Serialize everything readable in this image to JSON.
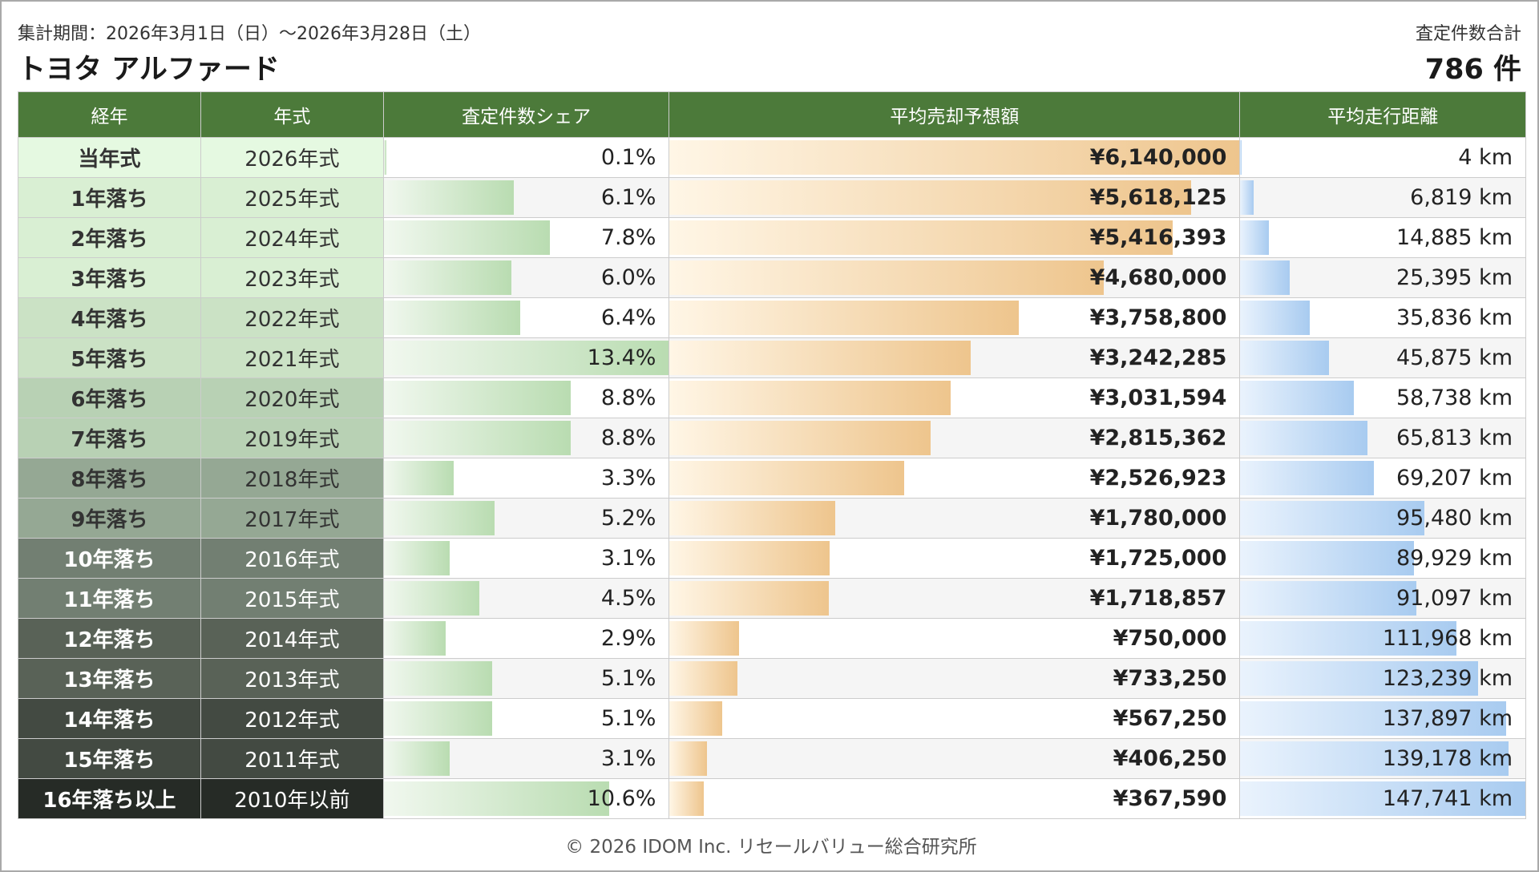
{
  "header": {
    "period": "集計期間：2026年3月1日（日）〜2026年3月28日（土）",
    "title": "トヨタ アルファード",
    "total_label": "査定件数合計",
    "total_value": "786 件"
  },
  "columns": {
    "age": "経年",
    "year": "年式",
    "share": "査定件数シェア",
    "price": "平均売却予想額",
    "mileage": "平均走行距離"
  },
  "rows": [
    {
      "age": "当年式",
      "year": "2026年式",
      "share": "0.1%",
      "share_pct": 0.1,
      "price": "¥6,140,000",
      "price_value": 6140000,
      "mileage": "4 km",
      "mileage_value": 4,
      "age_bg": "#e5f9e1",
      "age_fg": "#333333"
    },
    {
      "age": "1年落ち",
      "year": "2025年式",
      "share": "6.1%",
      "share_pct": 6.1,
      "price": "¥5,618,125",
      "price_value": 5618125,
      "mileage": "6,819 km",
      "mileage_value": 6819,
      "age_bg": "#d9efd3",
      "age_fg": "#333333"
    },
    {
      "age": "2年落ち",
      "year": "2024年式",
      "share": "7.8%",
      "share_pct": 7.8,
      "price": "¥5,416,393",
      "price_value": 5416393,
      "mileage": "14,885 km",
      "mileage_value": 14885,
      "age_bg": "#d9efd3",
      "age_fg": "#333333"
    },
    {
      "age": "3年落ち",
      "year": "2023年式",
      "share": "6.0%",
      "share_pct": 6.0,
      "price": "¥4,680,000",
      "price_value": 4680000,
      "mileage": "25,395 km",
      "mileage_value": 25395,
      "age_bg": "#d9efd3",
      "age_fg": "#333333"
    },
    {
      "age": "4年落ち",
      "year": "2022年式",
      "share": "6.4%",
      "share_pct": 6.4,
      "price": "¥3,758,800",
      "price_value": 3758800,
      "mileage": "35,836 km",
      "mileage_value": 35836,
      "age_bg": "#cbe2c5",
      "age_fg": "#333333"
    },
    {
      "age": "5年落ち",
      "year": "2021年式",
      "share": "13.4%",
      "share_pct": 13.4,
      "price": "¥3,242,285",
      "price_value": 3242285,
      "mileage": "45,875 km",
      "mileage_value": 45875,
      "age_bg": "#cbe2c5",
      "age_fg": "#333333"
    },
    {
      "age": "6年落ち",
      "year": "2020年式",
      "share": "8.8%",
      "share_pct": 8.8,
      "price": "¥3,031,594",
      "price_value": 3031594,
      "mileage": "58,738 km",
      "mileage_value": 58738,
      "age_bg": "#b8d1b4",
      "age_fg": "#333333"
    },
    {
      "age": "7年落ち",
      "year": "2019年式",
      "share": "8.8%",
      "share_pct": 8.8,
      "price": "¥2,815,362",
      "price_value": 2815362,
      "mileage": "65,813 km",
      "mileage_value": 65813,
      "age_bg": "#b8d1b4",
      "age_fg": "#333333"
    },
    {
      "age": "8年落ち",
      "year": "2018年式",
      "share": "3.3%",
      "share_pct": 3.3,
      "price": "¥2,526,923",
      "price_value": 2526923,
      "mileage": "69,207 km",
      "mileage_value": 69207,
      "age_bg": "#95a894",
      "age_fg": "#333333"
    },
    {
      "age": "9年落ち",
      "year": "2017年式",
      "share": "5.2%",
      "share_pct": 5.2,
      "price": "¥1,780,000",
      "price_value": 1780000,
      "mileage": "95,480 km",
      "mileage_value": 95480,
      "age_bg": "#95a894",
      "age_fg": "#333333"
    },
    {
      "age": "10年落ち",
      "year": "2016年式",
      "share": "3.1%",
      "share_pct": 3.1,
      "price": "¥1,725,000",
      "price_value": 1725000,
      "mileage": "89,929 km",
      "mileage_value": 89929,
      "age_bg": "#727f72",
      "age_fg": "#ffffff"
    },
    {
      "age": "11年落ち",
      "year": "2015年式",
      "share": "4.5%",
      "share_pct": 4.5,
      "price": "¥1,718,857",
      "price_value": 1718857,
      "mileage": "91,097 km",
      "mileage_value": 91097,
      "age_bg": "#727f72",
      "age_fg": "#ffffff"
    },
    {
      "age": "12年落ち",
      "year": "2014年式",
      "share": "2.9%",
      "share_pct": 2.9,
      "price": "¥750,000",
      "price_value": 750000,
      "mileage": "111,968 km",
      "mileage_value": 111968,
      "age_bg": "#596257",
      "age_fg": "#ffffff"
    },
    {
      "age": "13年落ち",
      "year": "2013年式",
      "share": "5.1%",
      "share_pct": 5.1,
      "price": "¥733,250",
      "price_value": 733250,
      "mileage": "123,239 km",
      "mileage_value": 123239,
      "age_bg": "#596257",
      "age_fg": "#ffffff"
    },
    {
      "age": "14年落ち",
      "year": "2012年式",
      "share": "5.1%",
      "share_pct": 5.1,
      "price": "¥567,250",
      "price_value": 567250,
      "mileage": "137,897 km",
      "mileage_value": 137897,
      "age_bg": "#434a42",
      "age_fg": "#ffffff"
    },
    {
      "age": "15年落ち",
      "year": "2011年式",
      "share": "3.1%",
      "share_pct": 3.1,
      "price": "¥406,250",
      "price_value": 406250,
      "mileage": "139,178 km",
      "mileage_value": 139178,
      "age_bg": "#434a42",
      "age_fg": "#ffffff"
    },
    {
      "age": "16年落ち以上",
      "year": "2010年以前",
      "share": "10.6%",
      "share_pct": 10.6,
      "price": "¥367,590",
      "price_value": 367590,
      "mileage": "147,741 km",
      "mileage_value": 147741,
      "age_bg": "#262b26",
      "age_fg": "#ffffff"
    }
  ],
  "scales": {
    "share_max": 13.4,
    "price_max": 6140000,
    "mileage_max": 147741
  },
  "footer": "© 2026 IDOM Inc. リセールバリュー総合研究所"
}
